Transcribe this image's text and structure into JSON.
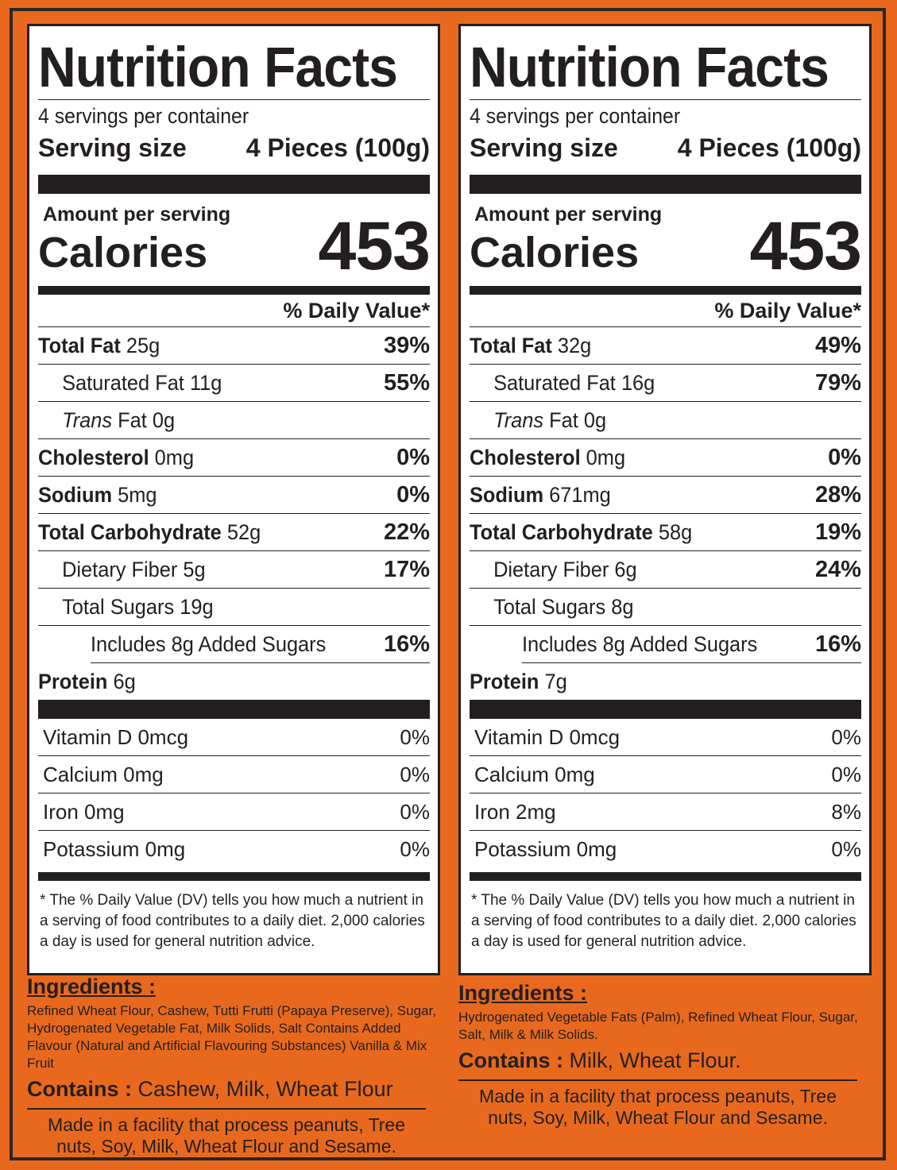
{
  "panels": [
    {
      "title": "Nutrition Facts",
      "servings_per_container": "4 servings per container",
      "serving_size_label": "Serving size",
      "serving_size_value": "4 Pieces (100g)",
      "amount_per_serving": "Amount per serving",
      "calories_label": "Calories",
      "calories_value": "453",
      "dv_header": "% Daily Value*",
      "nutrients": [
        {
          "name": "Total Fat",
          "amount": "25g",
          "dv": "39%"
        },
        {
          "name": "Saturated Fat",
          "amount": "11g",
          "dv": "55%"
        },
        {
          "name": "Trans",
          "name2": "Fat",
          "amount": "0g",
          "dv": ""
        },
        {
          "name": "Cholesterol",
          "amount": "0mg",
          "dv": "0%"
        },
        {
          "name": "Sodium",
          "amount": "5mg",
          "dv": "0%"
        },
        {
          "name": "Total Carbohydrate",
          "amount": "52g",
          "dv": "22%"
        },
        {
          "name": "Dietary Fiber",
          "amount": "5g",
          "dv": "17%"
        },
        {
          "name": "Total Sugars",
          "amount": "19g",
          "dv": ""
        },
        {
          "name": "Includes 8g Added Sugars",
          "amount": "",
          "dv": "16%"
        },
        {
          "name": "Protein",
          "amount": "6g",
          "dv": ""
        }
      ],
      "vitamins": [
        {
          "name": "Vitamin D",
          "amount": "0mcg",
          "dv": "0%"
        },
        {
          "name": "Calcium",
          "amount": "0mg",
          "dv": "0%"
        },
        {
          "name": "Iron",
          "amount": "0mg",
          "dv": "0%"
        },
        {
          "name": "Potassium",
          "amount": "0mg",
          "dv": "0%"
        }
      ],
      "footnote_star": "*",
      "footnote": "The % Daily Value (DV) tells you how much a nutrient in a serving of food contributes to a daily diet. 2,000 calories a day is used for general nutrition advice.",
      "ingredients_heading": "Ingredients :",
      "ingredients": "Refined Wheat Flour, Cashew, Tutti Frutti (Papaya Preserve), Sugar, Hydrogenated Vegetable Fat, Milk Solids, Salt Contains Added Flavour (Natural and Artificial Flavouring Substances) Vanilla & Mix Fruit",
      "contains_label": "Contains :",
      "contains_value": "Cashew, Milk, Wheat Flour",
      "facility": "Made in a facility that process peanuts, Tree nuts, Soy, Milk, Wheat Flour and Sesame."
    },
    {
      "title": "Nutrition Facts",
      "servings_per_container": "4 servings per container",
      "serving_size_label": "Serving size",
      "serving_size_value": "4 Pieces (100g)",
      "amount_per_serving": "Amount per serving",
      "calories_label": "Calories",
      "calories_value": "453",
      "dv_header": "% Daily Value*",
      "nutrients": [
        {
          "name": "Total Fat",
          "amount": "32g",
          "dv": "49%"
        },
        {
          "name": "Saturated Fat",
          "amount": "16g",
          "dv": "79%"
        },
        {
          "name": "Trans",
          "name2": "Fat",
          "amount": "0g",
          "dv": ""
        },
        {
          "name": "Cholesterol",
          "amount": "0mg",
          "dv": "0%"
        },
        {
          "name": "Sodium",
          "amount": "671mg",
          "dv": "28%"
        },
        {
          "name": "Total Carbohydrate",
          "amount": "58g",
          "dv": "19%"
        },
        {
          "name": "Dietary Fiber",
          "amount": "6g",
          "dv": "24%"
        },
        {
          "name": "Total Sugars",
          "amount": "8g",
          "dv": ""
        },
        {
          "name": "Includes 8g Added Sugars",
          "amount": "",
          "dv": "16%"
        },
        {
          "name": "Protein",
          "amount": "7g",
          "dv": ""
        }
      ],
      "vitamins": [
        {
          "name": "Vitamin D",
          "amount": "0mcg",
          "dv": "0%"
        },
        {
          "name": "Calcium",
          "amount": "0mg",
          "dv": "0%"
        },
        {
          "name": "Iron",
          "amount": "2mg",
          "dv": "8%"
        },
        {
          "name": "Potassium",
          "amount": "0mg",
          "dv": "0%"
        }
      ],
      "footnote_star": "*",
      "footnote": "The % Daily Value (DV) tells you how much a nutrient in a serving of food contributes to a daily diet. 2,000 calories a day is used for general nutrition advice.",
      "ingredients_heading": "Ingredients :",
      "ingredients": "Hydrogenated Vegetable Fats (Palm), Refined Wheat Flour, Sugar, Salt, Milk & Milk Solids.",
      "contains_label": "Contains :",
      "contains_value": "Milk, Wheat Flour.",
      "facility": "Made in a facility that process peanuts, Tree nuts, Soy, Milk, Wheat Flour and Sesame."
    }
  ]
}
